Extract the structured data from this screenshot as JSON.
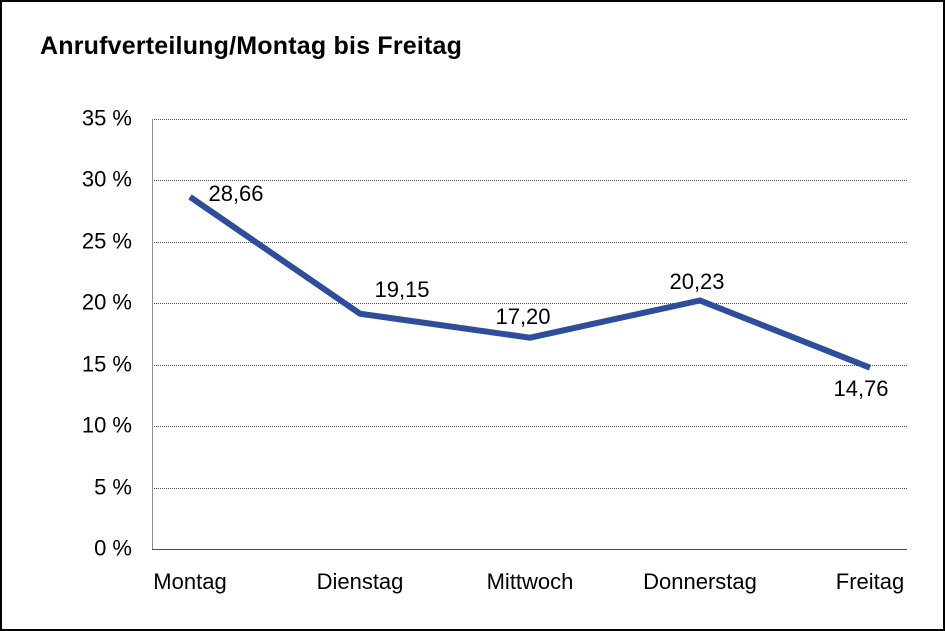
{
  "page": {
    "background": "#ffffff",
    "border_color": "#000000"
  },
  "chart_data": {
    "type": "line",
    "title": "Anrufverteilung/Montag bis Freitag",
    "categories": [
      "Montag",
      "Dienstag",
      "Mittwoch",
      "Donnerstag",
      "Freitag"
    ],
    "series": [
      {
        "name": "Anrufverteilung",
        "values": [
          28.66,
          19.15,
          17.2,
          20.23,
          14.76
        ]
      }
    ],
    "value_labels": [
      "28,66",
      "19,15",
      "17,20",
      "20,23",
      "14,76"
    ],
    "y_ticks": [
      "35 %",
      "30 %",
      "25 %",
      "20 %",
      "15 %",
      "10 %",
      "5 %",
      "0 %"
    ],
    "ylim": [
      0,
      35
    ],
    "y_step": 5,
    "xlabel": "",
    "ylabel": "",
    "grid": "horizontal-dotted",
    "legend": "none",
    "line_color": "#2e4e9b"
  }
}
